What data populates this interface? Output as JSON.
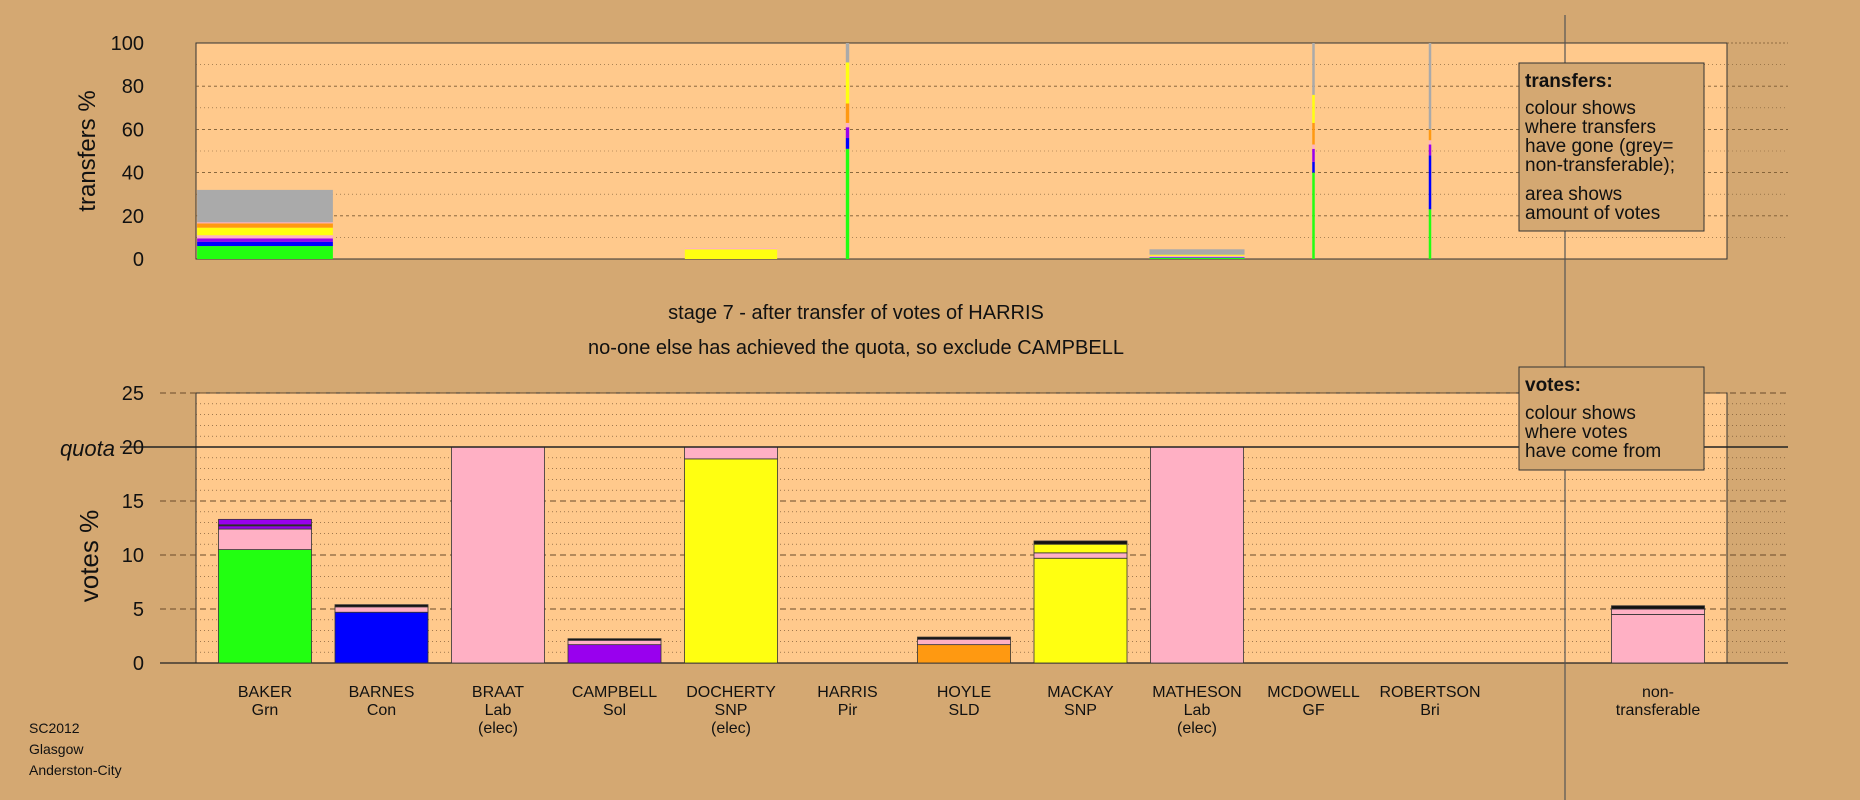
{
  "colors": {
    "background": "#d4a872",
    "plot_bg": "#ffc98c",
    "legend_bg": "#d4a872",
    "green": "#22ff11",
    "blue": "#0000ff",
    "pink": "#ffb0c4",
    "purple": "#9900ee",
    "yellow": "#ffff11",
    "orange": "#ff9911",
    "grey": "#aaaaaa",
    "dark": "#111111"
  },
  "top_chart": {
    "ylabel": "transfers %",
    "yticks": [
      "0",
      "20",
      "40",
      "60",
      "80",
      "100"
    ]
  },
  "stage_text": {
    "line1": "stage 7 - after transfer of votes of HARRIS",
    "line2": "no-one else has achieved the quota, so exclude CAMPBELL"
  },
  "bottom_chart": {
    "ylabel": "votes %",
    "yticks": [
      "0",
      "5",
      "10",
      "15",
      "20",
      "25"
    ],
    "quota_label": "quota",
    "quota_value": 20
  },
  "legend_transfers": {
    "title": "transfers:",
    "lines": [
      "colour shows",
      "where transfers",
      "have gone (grey=",
      "non-transferable);"
    ],
    "lines2": [
      "area shows",
      "amount of votes"
    ]
  },
  "legend_votes": {
    "title": "votes:",
    "lines": [
      "colour shows",
      "where votes",
      "have come from"
    ]
  },
  "footer": {
    "line1": "SC2012",
    "line2": "Glasgow",
    "line3": "Anderston-City"
  },
  "chart_data": [
    {
      "type": "bar",
      "title": "",
      "ylabel": "transfers %",
      "ylim": [
        0,
        100
      ],
      "categories": [
        "BAKER",
        "BARNES",
        "BRAAT",
        "CAMPBELL",
        "DOCHERTY",
        "HARRIS",
        "HOYLE",
        "MACKAY",
        "MATHESON",
        "MCDOWELL",
        "ROBERTSON"
      ],
      "transfers": [
        {
          "candidate": "BAKER",
          "width": 1.0,
          "segments": [
            {
              "color": "green",
              "value": 6
            },
            {
              "color": "blue",
              "value": 2
            },
            {
              "color": "purple",
              "value": 1.5
            },
            {
              "color": "pink",
              "value": 1.5
            },
            {
              "color": "yellow",
              "value": 3.5
            },
            {
              "color": "orange",
              "value": 2
            },
            {
              "color": "pink",
              "value": 0.5
            },
            {
              "color": "grey",
              "value": 15
            }
          ]
        },
        {
          "candidate": "DOCHERTY",
          "width": 0.68,
          "segments": [
            {
              "color": "yellow",
              "value": 4.5
            },
            {
              "color": "pink",
              "value": 0.5
            }
          ]
        },
        {
          "candidate": "HARRIS",
          "width": 0.025,
          "segments": [
            {
              "color": "green",
              "value": 51
            },
            {
              "color": "blue",
              "value": 5
            },
            {
              "color": "purple",
              "value": 5
            },
            {
              "color": "pink",
              "value": 2
            },
            {
              "color": "orange",
              "value": 9
            },
            {
              "color": "yellow",
              "value": 19
            },
            {
              "color": "grey",
              "value": 9
            }
          ]
        },
        {
          "candidate": "MATHESON",
          "width": 0.7,
          "segments": [
            {
              "color": "green",
              "value": 0.5
            },
            {
              "color": "blue",
              "value": 0.3
            },
            {
              "color": "pink",
              "value": 0.7
            },
            {
              "color": "yellow",
              "value": 0.5
            },
            {
              "color": "grey",
              "value": 2.5
            }
          ]
        },
        {
          "candidate": "MCDOWELL",
          "width": 0.015,
          "segments": [
            {
              "color": "green",
              "value": 40
            },
            {
              "color": "blue",
              "value": 5
            },
            {
              "color": "purple",
              "value": 6
            },
            {
              "color": "pink",
              "value": 2
            },
            {
              "color": "orange",
              "value": 10
            },
            {
              "color": "yellow",
              "value": 13
            },
            {
              "color": "grey",
              "value": 24
            }
          ]
        },
        {
          "candidate": "ROBERTSON",
          "width": 0.015,
          "segments": [
            {
              "color": "green",
              "value": 23
            },
            {
              "color": "blue",
              "value": 25
            },
            {
              "color": "purple",
              "value": 5
            },
            {
              "color": "pink",
              "value": 2
            },
            {
              "color": "orange",
              "value": 5
            },
            {
              "color": "grey",
              "value": 40
            }
          ]
        }
      ]
    },
    {
      "type": "bar",
      "title": "",
      "ylabel": "votes %",
      "ylim": [
        0,
        25
      ],
      "quota": 20,
      "candidates": [
        {
          "name": "BAKER",
          "party": "Grn",
          "note": "",
          "segments": [
            {
              "color": "green",
              "value": 10.5
            },
            {
              "color": "pink",
              "value": 1.9
            },
            {
              "color": "purple",
              "value": 0.3
            },
            {
              "color": "dark",
              "value": 0.1
            },
            {
              "color": "purple",
              "value": 0.5
            }
          ]
        },
        {
          "name": "BARNES",
          "party": "Con",
          "note": "",
          "segments": [
            {
              "color": "blue",
              "value": 4.7
            },
            {
              "color": "pink",
              "value": 0.5
            },
            {
              "color": "dark",
              "value": 0.2
            }
          ]
        },
        {
          "name": "BRAAT",
          "party": "Lab",
          "note": "(elec)",
          "segments": [
            {
              "color": "pink",
              "value": 20
            }
          ]
        },
        {
          "name": "CAMPBELL",
          "party": "Sol",
          "note": "",
          "segments": [
            {
              "color": "purple",
              "value": 1.7
            },
            {
              "color": "pink",
              "value": 0.4
            },
            {
              "color": "dark",
              "value": 0.15
            }
          ]
        },
        {
          "name": "DOCHERTY",
          "party": "SNP",
          "note": "(elec)",
          "segments": [
            {
              "color": "yellow",
              "value": 18.9
            },
            {
              "color": "pink",
              "value": 1.1
            }
          ]
        },
        {
          "name": "HARRIS",
          "party": "Pir",
          "note": "",
          "segments": []
        },
        {
          "name": "HOYLE",
          "party": "SLD",
          "note": "",
          "segments": [
            {
              "color": "orange",
              "value": 1.7
            },
            {
              "color": "pink",
              "value": 0.5
            },
            {
              "color": "dark",
              "value": 0.2
            }
          ]
        },
        {
          "name": "MACKAY",
          "party": "SNP",
          "note": "",
          "segments": [
            {
              "color": "yellow",
              "value": 9.7
            },
            {
              "color": "pink",
              "value": 0.5
            },
            {
              "color": "yellow",
              "value": 0.8
            },
            {
              "color": "dark",
              "value": 0.3
            }
          ]
        },
        {
          "name": "MATHESON",
          "party": "Lab",
          "note": "(elec)",
          "segments": [
            {
              "color": "pink",
              "value": 20
            }
          ]
        },
        {
          "name": "MCDOWELL",
          "party": "GF",
          "note": "",
          "segments": []
        },
        {
          "name": "ROBERTSON",
          "party": "Bri",
          "note": "",
          "segments": []
        }
      ],
      "nontransferable": {
        "label_line1": "non-",
        "label_line2": "transferable",
        "segments": [
          {
            "color": "pink",
            "value": 4.5
          },
          {
            "color": "pink",
            "value": 0.5
          },
          {
            "color": "dark",
            "value": 0.3
          }
        ]
      }
    }
  ]
}
